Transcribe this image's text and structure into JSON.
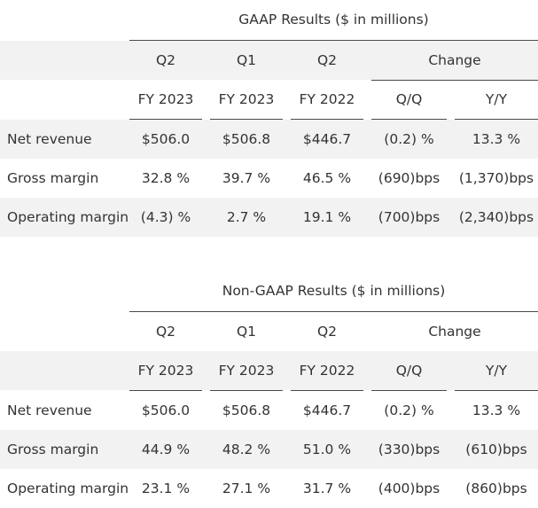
{
  "tables": [
    {
      "title": "GAAP Results ($ in millions)",
      "header1": [
        "Q2",
        "Q1",
        "Q2",
        "Change"
      ],
      "header2": [
        "FY 2023",
        "FY 2023",
        "FY 2022",
        "Q/Q",
        "Y/Y"
      ],
      "rows": [
        {
          "label": "Net revenue",
          "cells": [
            "$506.0",
            "$506.8",
            "$446.7",
            "(0.2) %",
            "13.3 %"
          ]
        },
        {
          "label": "Gross margin",
          "cells": [
            "32.8 %",
            "39.7 %",
            "46.5 %",
            "(690)bps",
            "(1,370)bps"
          ]
        },
        {
          "label": "Operating margin",
          "cells": [
            "(4.3) %",
            "2.7 %",
            "19.1 %",
            "(700)bps",
            "(2,340)bps"
          ]
        }
      ]
    },
    {
      "title": "Non-GAAP Results ($ in millions)",
      "header1": [
        "Q2",
        "Q1",
        "Q2",
        "Change"
      ],
      "header2": [
        "FY 2023",
        "FY 2023",
        "FY 2022",
        "Q/Q",
        "Y/Y"
      ],
      "rows": [
        {
          "label": "Net revenue",
          "cells": [
            "$506.0",
            "$506.8",
            "$446.7",
            "(0.2) %",
            "13.3 %"
          ]
        },
        {
          "label": "Gross margin",
          "cells": [
            "44.9 %",
            "48.2 %",
            "51.0 %",
            "(330)bps",
            "(610)bps"
          ]
        },
        {
          "label": "Operating margin",
          "cells": [
            "23.1 %",
            "27.1 %",
            "31.7 %",
            "(400)bps",
            "(860)bps"
          ]
        }
      ]
    }
  ]
}
